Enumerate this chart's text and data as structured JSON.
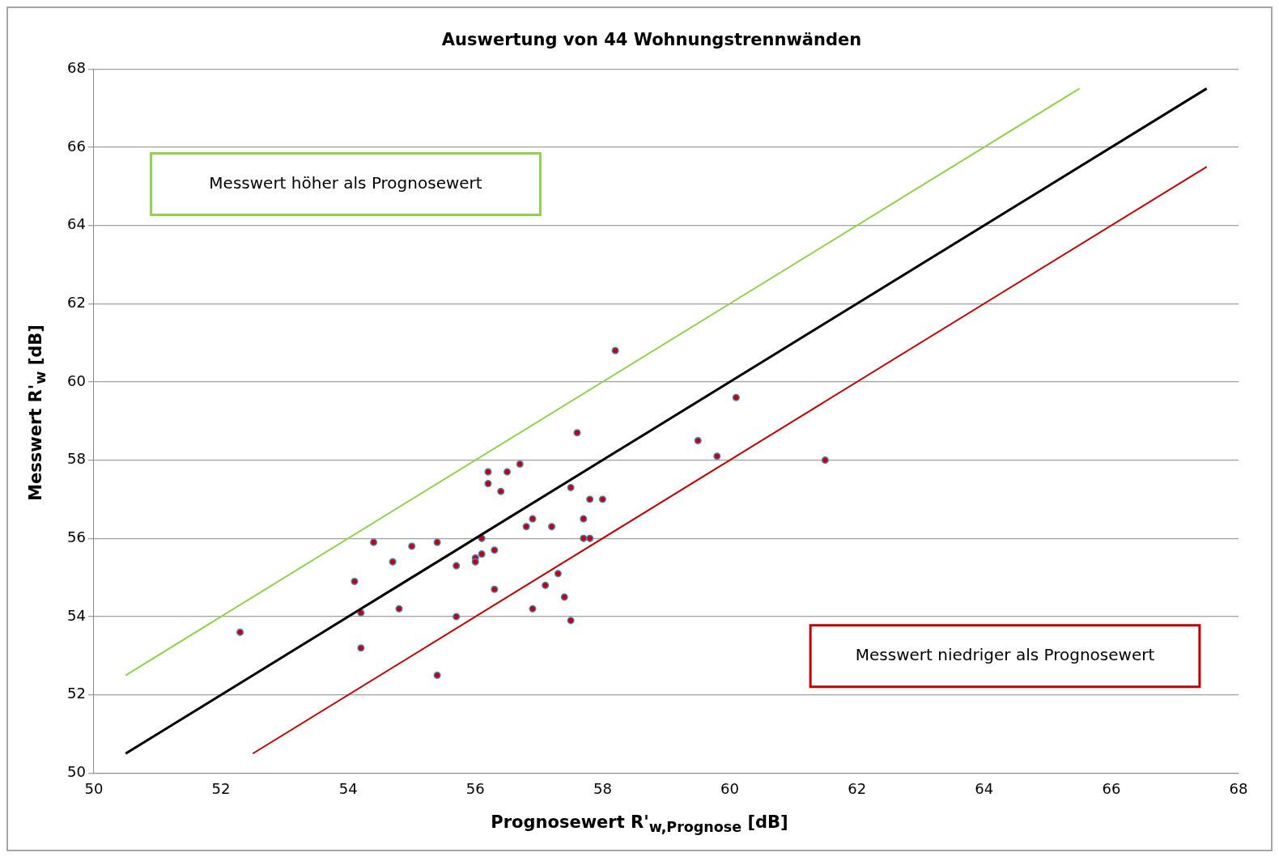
{
  "chart_data": {
    "type": "scatter",
    "title": "Auswertung von 44 Wohnungstrennwänden",
    "xlabel": "Prognosewert R'$_{w,Prognose}$  [dB]",
    "ylabel": "Messwert R'$_{w}$  [dB]",
    "xlim": [
      50,
      68
    ],
    "ylim": [
      50,
      68
    ],
    "xticks": [
      50,
      52,
      54,
      56,
      58,
      60,
      62,
      64,
      66,
      68
    ],
    "yticks": [
      50,
      52,
      54,
      56,
      58,
      60,
      62,
      64,
      66,
      68
    ],
    "grid": "y",
    "legend": false,
    "annotations": [
      "Messwert höher als Prognosewert",
      "Messwert niedriger als Prognosewert"
    ],
    "series": [
      {
        "type": "line",
        "marker": "none",
        "color": "#92d050",
        "x": [
          50.5,
          65.5
        ],
        "values": [
          52.5,
          67.5
        ]
      },
      {
        "type": "line",
        "marker": "none",
        "color": "#000000",
        "x": [
          50.5,
          67.5
        ],
        "values": [
          50.5,
          67.5
        ]
      },
      {
        "type": "line",
        "marker": "none",
        "color": "#c00000",
        "x": [
          52.5,
          67.5
        ],
        "values": [
          50.5,
          65.5
        ]
      },
      {
        "marker": "circle",
        "color": "#c00000",
        "x": [
          52.3,
          54.1,
          54.2,
          54.2,
          54.4,
          54.7,
          54.8,
          55.0,
          55.4,
          55.4,
          55.7,
          55.7,
          56.0,
          56.0,
          56.1,
          56.1,
          56.2,
          56.2,
          56.3,
          56.3,
          56.4,
          56.5,
          56.7,
          56.8,
          56.9,
          56.9,
          57.1,
          57.2,
          57.3,
          57.4,
          57.5,
          57.5,
          57.6,
          57.7,
          57.7,
          57.8,
          57.8,
          58.0,
          58.2,
          59.5,
          59.8,
          60.1,
          61.5
        ],
        "values": [
          53.6,
          54.9,
          54.1,
          53.2,
          55.9,
          55.4,
          54.2,
          55.8,
          55.9,
          52.5,
          55.3,
          54.0,
          55.5,
          55.4,
          56.0,
          55.6,
          57.7,
          57.4,
          55.7,
          54.7,
          57.2,
          57.7,
          57.9,
          56.3,
          56.5,
          54.2,
          54.8,
          56.3,
          55.1,
          54.5,
          57.3,
          53.9,
          58.7,
          56.5,
          56.0,
          57.0,
          56.0,
          57.0,
          60.8,
          58.5,
          58.1,
          59.6,
          58.0
        ]
      }
    ]
  }
}
